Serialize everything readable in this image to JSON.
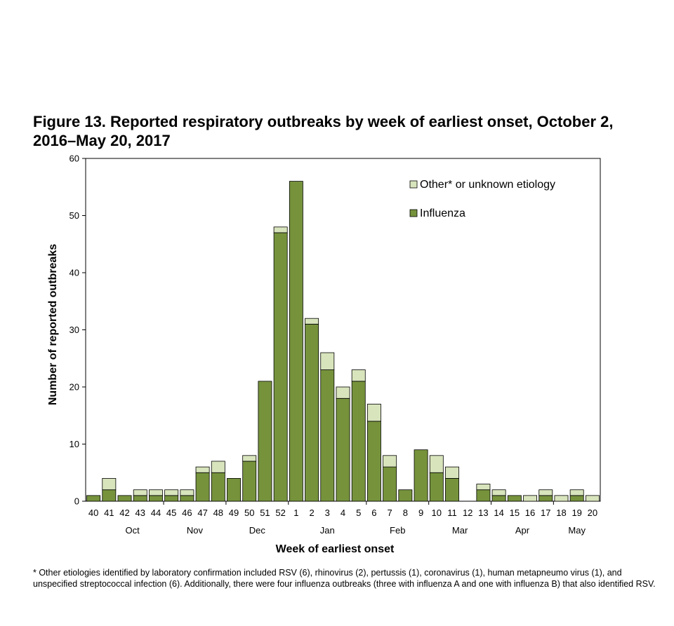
{
  "title": "Figure 13. Reported respiratory outbreaks by week of earliest onset, October 2, 2016–May 20, 2017",
  "footnote": "* Other etiologies identified by laboratory confirmation included RSV (6), rhinovirus (2), pertussis (1), coronavirus (1), human metapneumo virus (1), and unspecified streptococcal infection (6). Additionally, there were four influenza outbreaks (three with influenza A and one with influenza B) that also identified RSV.",
  "colors": {
    "influenza": "#76933c",
    "other": "#d8e4bc",
    "outline": "#000000"
  },
  "chart_data": {
    "type": "bar",
    "stacked": true,
    "xlabel": "Week of earliest onset",
    "ylabel": "Number of reported outbreaks",
    "ylim": [
      0,
      60
    ],
    "yticks": [
      0,
      10,
      20,
      30,
      40,
      50,
      60
    ],
    "grid": false,
    "legend_position": "top-right",
    "categories": [
      "40",
      "41",
      "42",
      "43",
      "44",
      "45",
      "46",
      "47",
      "48",
      "49",
      "50",
      "51",
      "52",
      "1",
      "2",
      "3",
      "4",
      "5",
      "6",
      "7",
      "8",
      "9",
      "10",
      "11",
      "12",
      "13",
      "14",
      "15",
      "16",
      "17",
      "18",
      "19",
      "20"
    ],
    "months": [
      {
        "label": "Oct",
        "start": "41",
        "end": "44"
      },
      {
        "label": "Nov",
        "start": "45",
        "end": "48"
      },
      {
        "label": "Dec",
        "start": "49",
        "end": "52"
      },
      {
        "label": "Jan",
        "start": "1",
        "end": "5"
      },
      {
        "label": "Feb",
        "start": "6",
        "end": "9"
      },
      {
        "label": "Mar",
        "start": "10",
        "end": "13"
      },
      {
        "label": "Apr",
        "start": "14",
        "end": "17"
      },
      {
        "label": "May",
        "start": "18",
        "end": "20"
      }
    ],
    "series": [
      {
        "name": "Influenza",
        "key": "influenza",
        "values": [
          1,
          2,
          1,
          1,
          1,
          1,
          1,
          5,
          5,
          4,
          7,
          21,
          47,
          56,
          31,
          23,
          18,
          21,
          14,
          6,
          2,
          9,
          5,
          4,
          0,
          2,
          1,
          1,
          0,
          1,
          0,
          1,
          0
        ]
      },
      {
        "name": "Other* or unknown etiology",
        "key": "other",
        "values": [
          0,
          2,
          0,
          1,
          1,
          1,
          1,
          1,
          2,
          0,
          1,
          0,
          1,
          0,
          1,
          3,
          2,
          2,
          3,
          2,
          0,
          0,
          3,
          2,
          0,
          1,
          1,
          0,
          1,
          1,
          1,
          1,
          1
        ]
      }
    ],
    "legend_order": [
      "other",
      "influenza"
    ]
  }
}
